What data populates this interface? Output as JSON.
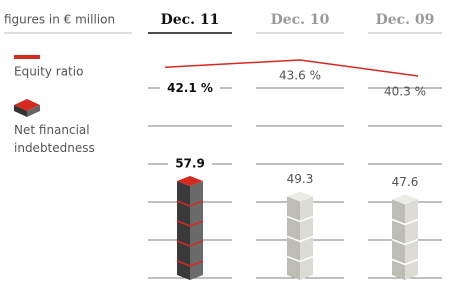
{
  "chart_data": [
    {
      "type": "line",
      "title": "figures in € million",
      "categories": [
        "Dec. 11",
        "Dec. 10",
        "Dec. 09"
      ],
      "series": [
        {
          "name": "Equity ratio",
          "color": "#d42a20",
          "values": [
            42.1,
            43.6,
            40.3
          ],
          "value_labels": [
            "42.1 %",
            "43.6 %",
            "40.3 %"
          ]
        }
      ]
    },
    {
      "type": "bar",
      "categories": [
        "Dec. 11",
        "Dec. 10",
        "Dec. 09"
      ],
      "series": [
        {
          "name": "Net financial indebtedness",
          "color": "#d42a20",
          "values": [
            57.9,
            49.3,
            47.6
          ],
          "value_labels": [
            "57.9",
            "49.3",
            "47.6"
          ]
        }
      ],
      "colors": [
        "#4a4a4a",
        "#d8d8d0",
        "#d8d8d0"
      ]
    }
  ]
}
